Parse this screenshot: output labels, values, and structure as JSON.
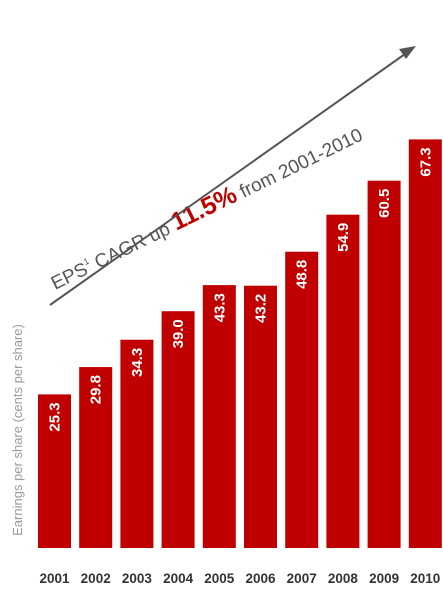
{
  "chart_data": {
    "type": "bar",
    "categories": [
      "2001",
      "2002",
      "2003",
      "2004",
      "2005",
      "2006",
      "2007",
      "2008",
      "2009",
      "2010"
    ],
    "values": [
      25.3,
      29.8,
      34.3,
      39.0,
      43.3,
      43.2,
      48.8,
      54.9,
      60.5,
      67.3
    ],
    "value_labels": [
      "25.3",
      "29.8",
      "34.3",
      "39.0",
      "43.3",
      "43.2",
      "48.8",
      "54.9",
      "60.5",
      "67.3"
    ],
    "ylabel": "Earnings per share (cents per share)",
    "bar_color": "#c00000",
    "annotation": {
      "prefix": "EPS",
      "superscript": "1",
      "middle": " CAGR up ",
      "highlight": "11.5%",
      "suffix": " from 2001-2010",
      "arrow_color": "#555555"
    }
  }
}
